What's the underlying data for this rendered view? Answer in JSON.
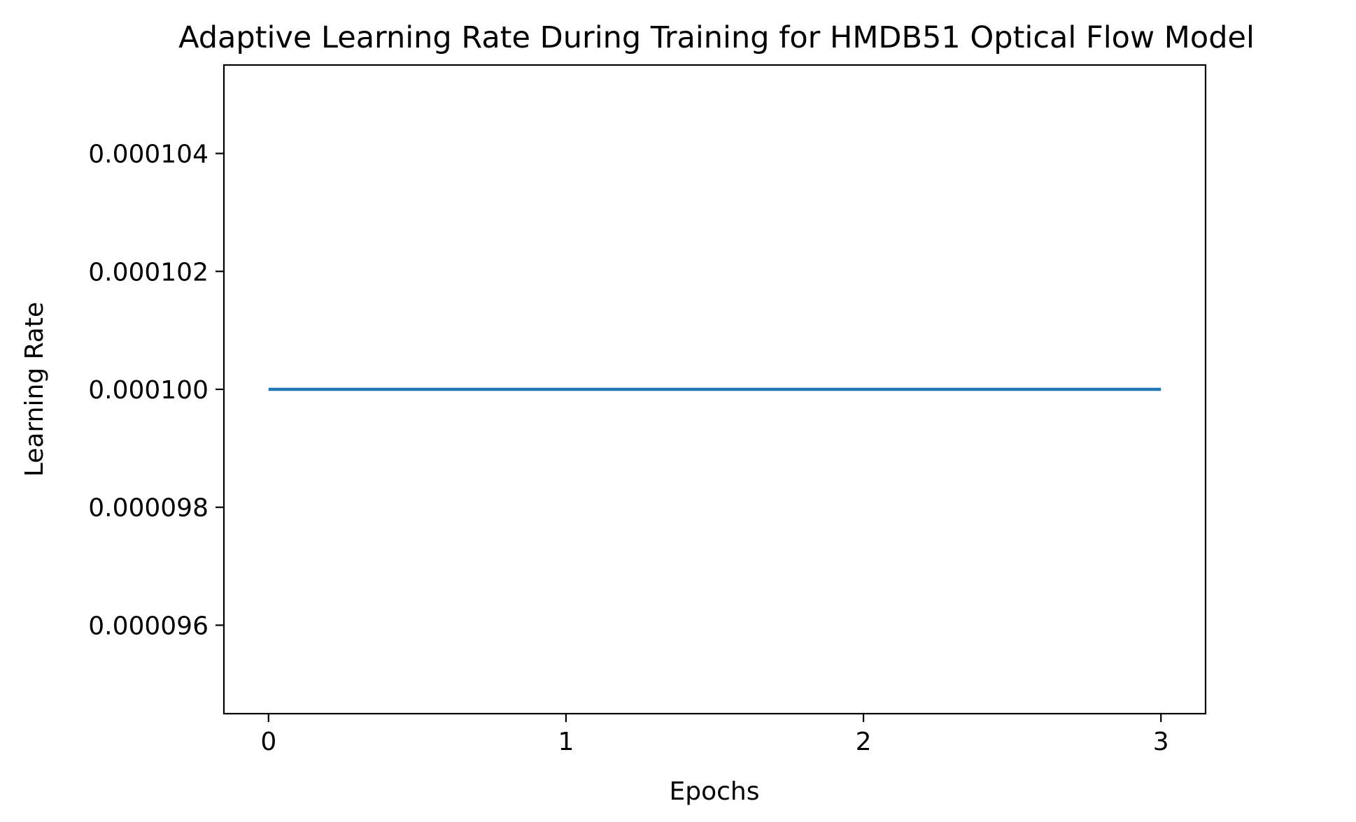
{
  "chart_data": {
    "type": "line",
    "title": "Adaptive Learning Rate During Training for HMDB51 Optical Flow Model",
    "xlabel": "Epochs",
    "ylabel": "Learning Rate",
    "x": [
      0,
      1,
      2,
      3
    ],
    "series": [
      {
        "values": [
          0.0001,
          0.0001,
          0.0001,
          0.0001
        ],
        "color": "#1f77b4"
      }
    ],
    "xlim": [
      -0.15,
      3.15
    ],
    "ylim": [
      9.45e-05,
      0.0001055
    ],
    "xticks": [
      0,
      1,
      2,
      3
    ],
    "xtick_labels": [
      "0",
      "1",
      "2",
      "3"
    ],
    "yticks": [
      9.6e-05,
      9.8e-05,
      0.0001,
      0.000102,
      0.000104
    ],
    "ytick_labels": [
      "0.000096",
      "0.000098",
      "0.000100",
      "0.000102",
      "0.000104"
    ],
    "grid": false,
    "legend": false
  }
}
